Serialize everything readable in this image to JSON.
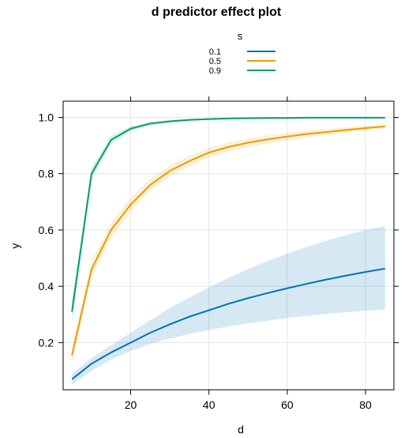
{
  "chart_data": {
    "type": "line",
    "title": "d predictor effect plot",
    "xlabel": "d",
    "ylabel": "y",
    "xlim": [
      2.75,
      87.25
    ],
    "ylim": [
      0.0325,
      1.0575
    ],
    "xticks": [
      20,
      40,
      60,
      80
    ],
    "yticks": [
      0.2,
      0.4,
      0.6,
      0.8,
      1.0
    ],
    "ytick_labels": [
      "0.2",
      "0.4",
      "0.6",
      "0.8",
      "1.0"
    ],
    "grid": true,
    "legend": {
      "title": "s",
      "position": "top-center"
    },
    "x": [
      5,
      10,
      15,
      20,
      25,
      30,
      35,
      40,
      45,
      50,
      55,
      60,
      65,
      70,
      75,
      80,
      85
    ],
    "series": [
      {
        "name": "0.1",
        "color": "#0072B2",
        "values": [
          0.07,
          0.125,
          0.165,
          0.2,
          0.235,
          0.265,
          0.292,
          0.315,
          0.338,
          0.358,
          0.376,
          0.393,
          0.409,
          0.424,
          0.438,
          0.451,
          0.463
        ],
        "lower": [
          0.05,
          0.1,
          0.14,
          0.17,
          0.195,
          0.215,
          0.23,
          0.245,
          0.257,
          0.268,
          0.278,
          0.287,
          0.295,
          0.302,
          0.308,
          0.313,
          0.318
        ],
        "upper": [
          0.09,
          0.145,
          0.19,
          0.235,
          0.28,
          0.322,
          0.36,
          0.396,
          0.43,
          0.461,
          0.49,
          0.516,
          0.54,
          0.562,
          0.582,
          0.6,
          0.614
        ]
      },
      {
        "name": "0.5",
        "color": "#E69F00",
        "values": [
          0.155,
          0.46,
          0.6,
          0.69,
          0.76,
          0.81,
          0.845,
          0.875,
          0.895,
          0.91,
          0.922,
          0.932,
          0.941,
          0.948,
          0.955,
          0.962,
          0.968
        ],
        "lower": [
          0.125,
          0.43,
          0.575,
          0.665,
          0.74,
          0.79,
          0.827,
          0.858,
          0.879,
          0.895,
          0.908,
          0.919,
          0.929,
          0.937,
          0.945,
          0.953,
          0.96
        ],
        "upper": [
          0.185,
          0.49,
          0.625,
          0.715,
          0.78,
          0.83,
          0.863,
          0.892,
          0.911,
          0.925,
          0.936,
          0.945,
          0.953,
          0.959,
          0.965,
          0.971,
          0.976
        ]
      },
      {
        "name": "0.9",
        "color": "#009E73",
        "values": [
          0.31,
          0.8,
          0.92,
          0.96,
          0.978,
          0.986,
          0.991,
          0.994,
          0.996,
          0.997,
          0.998,
          0.998,
          0.999,
          0.999,
          0.999,
          0.999,
          0.999
        ],
        "lower": [
          0.27,
          0.78,
          0.905,
          0.952,
          0.972,
          0.982,
          0.988,
          0.992,
          0.994,
          0.996,
          0.997,
          0.997,
          0.998,
          0.998,
          0.998,
          0.998,
          0.998
        ],
        "upper": [
          0.35,
          0.82,
          0.935,
          0.968,
          0.984,
          0.99,
          0.994,
          0.996,
          0.997,
          0.998,
          0.999,
          0.999,
          0.999,
          1.0,
          1.0,
          1.0,
          1.0
        ]
      }
    ]
  }
}
